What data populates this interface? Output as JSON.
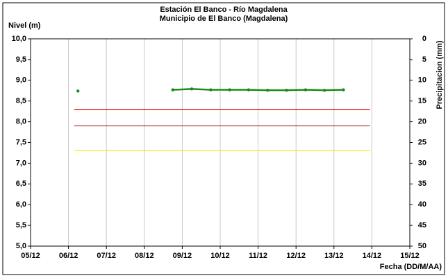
{
  "chart_data": {
    "type": "line",
    "title": "Estación El Banco - Río Magdalena",
    "subtitle": "Municipio de El Banco (Magdalena)",
    "y_label": "Nivel (m)",
    "y2_label": "Precipitacion (mm)",
    "x_label": "Fecha (DD/M/AA)",
    "xlim": [
      5,
      15
    ],
    "xticks": [
      {
        "value": 5,
        "label": "05/12"
      },
      {
        "value": 6,
        "label": "06/12"
      },
      {
        "value": 7,
        "label": "07/12"
      },
      {
        "value": 8,
        "label": "08/12"
      },
      {
        "value": 9,
        "label": "09/12"
      },
      {
        "value": 10,
        "label": "10/12"
      },
      {
        "value": 11,
        "label": "11/12"
      },
      {
        "value": 12,
        "label": "12/12"
      },
      {
        "value": 13,
        "label": "13/12"
      },
      {
        "value": 14,
        "label": "14/12"
      },
      {
        "value": 15,
        "label": "15/12"
      }
    ],
    "ylim": [
      5,
      10
    ],
    "yticks": [
      {
        "value": 5,
        "label": "5,0"
      },
      {
        "value": 5.5,
        "label": "5,5"
      },
      {
        "value": 6,
        "label": "6,0"
      },
      {
        "value": 6.5,
        "label": "6,5"
      },
      {
        "value": 7,
        "label": "7,0"
      },
      {
        "value": 7.5,
        "label": "7,5"
      },
      {
        "value": 8,
        "label": "8,0"
      },
      {
        "value": 8.5,
        "label": "8,5"
      },
      {
        "value": 9,
        "label": "9,0"
      },
      {
        "value": 9.5,
        "label": "9,5"
      },
      {
        "value": 10,
        "label": "10,0"
      }
    ],
    "y2lim": [
      50,
      0
    ],
    "y2ticks": [
      50,
      45,
      40,
      35,
      30,
      25,
      20,
      15,
      10,
      5,
      0
    ],
    "xgrid": true,
    "series": [
      {
        "color": "#1a8a1a",
        "markers": true,
        "x": [
          6.25,
          7.5,
          8.75,
          9.25,
          9.75,
          10.25,
          10.75,
          11.25,
          11.75,
          12.25,
          12.75,
          13.25
        ],
        "values": [
          8.74,
          null,
          8.77,
          8.79,
          8.77,
          8.77,
          8.77,
          8.76,
          8.76,
          8.77,
          8.76,
          8.77
        ]
      },
      {
        "color": "#e00000",
        "markers": false,
        "x": [
          6.15,
          13.95
        ],
        "values": [
          8.3,
          8.3
        ]
      },
      {
        "color": "#b03020",
        "markers": false,
        "x": [
          6.15,
          13.95
        ],
        "values": [
          7.9,
          7.9
        ]
      },
      {
        "color": "#f0f000",
        "markers": false,
        "x": [
          6.15,
          13.95
        ],
        "values": [
          7.3,
          7.3
        ]
      }
    ]
  }
}
